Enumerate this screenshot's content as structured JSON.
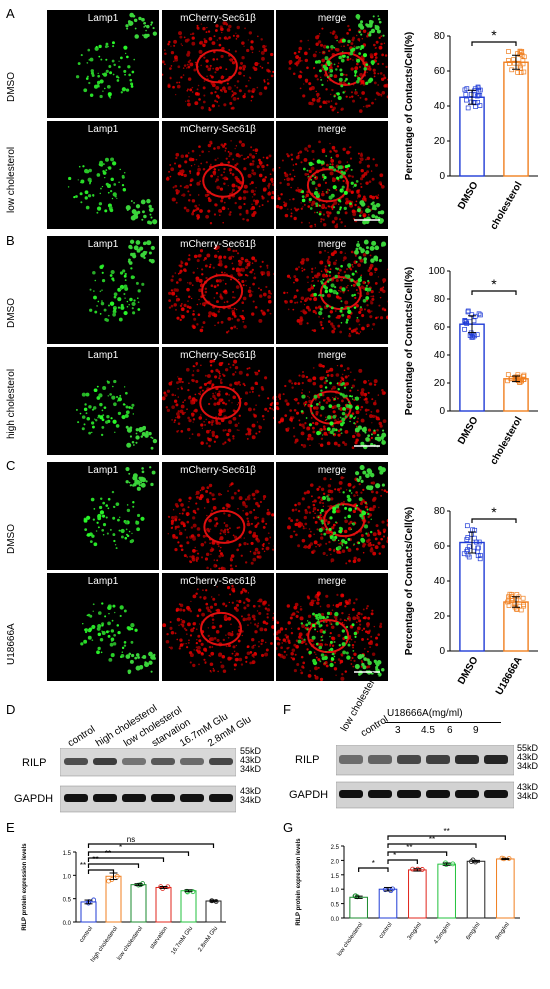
{
  "panels": {
    "A": {
      "letter": "A",
      "rows": [
        "DMSO",
        "low cholesterol"
      ],
      "cols": [
        "Lamp1",
        "mCherry-Sec61β",
        "merge"
      ]
    },
    "B": {
      "letter": "B",
      "rows": [
        "DMSO",
        "high cholesterol"
      ],
      "cols": [
        "Lamp1",
        "mCherry-Sec61β",
        "merge"
      ]
    },
    "C": {
      "letter": "C",
      "rows": [
        "DMSO",
        "U18666A"
      ],
      "cols": [
        "Lamp1",
        "mCherry-Sec61β",
        "merge"
      ]
    },
    "D": {
      "letter": "D",
      "lanes": [
        "control",
        "high cholesterol",
        "low cholesterol",
        "starvation",
        "16.7mM Glu",
        "2.8mM Glu"
      ],
      "bands": [
        "RILP",
        "GAPDH"
      ],
      "markers_top": [
        "55kD",
        "43kD",
        "34kD"
      ],
      "markers_bottom": [
        "43kD",
        "34kD"
      ]
    },
    "E": {
      "letter": "E"
    },
    "F": {
      "letter": "F",
      "lanes_left": [
        "low cholesterol",
        "control"
      ],
      "group_label": "U18666A(mg/ml)",
      "doses": [
        "3",
        "4.5",
        "6",
        "9"
      ],
      "bands": [
        "RILP",
        "GAPDH"
      ],
      "markers_top": [
        "55kD",
        "43kD",
        "34kD"
      ],
      "markers_bottom": [
        "43kD",
        "34kD"
      ]
    },
    "G": {
      "letter": "G"
    }
  },
  "chart_data": [
    {
      "id": "A",
      "type": "bar",
      "categories": [
        "DMSO",
        "low cholesterol"
      ],
      "values": [
        45,
        65
      ],
      "errors": [
        4,
        4
      ],
      "ylabel": "Percentage of Contacts/Cell(%)",
      "ylim": [
        0,
        80
      ],
      "yticks": [
        0,
        20,
        40,
        60,
        80
      ],
      "significance": [
        "*"
      ],
      "colors": [
        "#1f3bd6",
        "#f07f1f"
      ]
    },
    {
      "id": "B",
      "type": "bar",
      "categories": [
        "DMSO",
        "high cholesterol"
      ],
      "values": [
        62,
        23
      ],
      "errors": [
        6,
        2
      ],
      "ylabel": "Percentage of Contacts/Cell(%)",
      "ylim": [
        0,
        100
      ],
      "yticks": [
        0,
        20,
        40,
        60,
        80,
        100
      ],
      "significance": [
        "*"
      ],
      "colors": [
        "#1f3bd6",
        "#f07f1f"
      ]
    },
    {
      "id": "C",
      "type": "bar",
      "categories": [
        "DMSO",
        "U18666A"
      ],
      "values": [
        62,
        28
      ],
      "errors": [
        6,
        3
      ],
      "ylabel": "Percentage of Contacts/Cell(%)",
      "ylim": [
        0,
        80
      ],
      "yticks": [
        0,
        20,
        40,
        60,
        80
      ],
      "significance": [
        "*"
      ],
      "colors": [
        "#1f3bd6",
        "#f07f1f"
      ]
    },
    {
      "id": "E",
      "type": "bar",
      "categories": [
        "control",
        "high cholesterol",
        "low cholesterol",
        "starvation",
        "16.7mM Glu",
        "2.8mM Glu"
      ],
      "values": [
        0.43,
        0.98,
        0.8,
        0.74,
        0.67,
        0.45
      ],
      "errors": [
        0.04,
        0.07,
        0.02,
        0.02,
        0.02,
        0.02
      ],
      "ylabel": "RILP protein expression levels",
      "ylim": [
        0,
        1.5
      ],
      "yticks": [
        "0.0",
        "0.5",
        "1.0",
        "1.5"
      ],
      "significance": [
        "**",
        "**",
        "**",
        "*",
        "ns"
      ],
      "colors": [
        "#1f3bd6",
        "#f07f1f",
        "#1a8a2e",
        "#e0241b",
        "#22c23c",
        "#222222"
      ]
    },
    {
      "id": "G",
      "type": "bar",
      "categories": [
        "low cholesterol",
        "control",
        "3mg/ml",
        "4.5mg/ml",
        "6mg/ml",
        "9mg/ml"
      ],
      "values": [
        0.72,
        1.0,
        1.67,
        1.87,
        1.97,
        2.05
      ],
      "errors": [
        0.04,
        0.06,
        0.04,
        0.04,
        0.03,
        0.02
      ],
      "ylabel": "RILP protein expression levels",
      "ylim": [
        0,
        2.5
      ],
      "yticks": [
        "0.0",
        "0.5",
        "1.0",
        "1.5",
        "2.0",
        "2.5"
      ],
      "significance": [
        "*",
        "*",
        "**",
        "**",
        "**"
      ],
      "colors": [
        "#1a8a2e",
        "#1f3bd6",
        "#e0241b",
        "#22c23c",
        "#222222",
        "#f07f1f"
      ]
    }
  ]
}
